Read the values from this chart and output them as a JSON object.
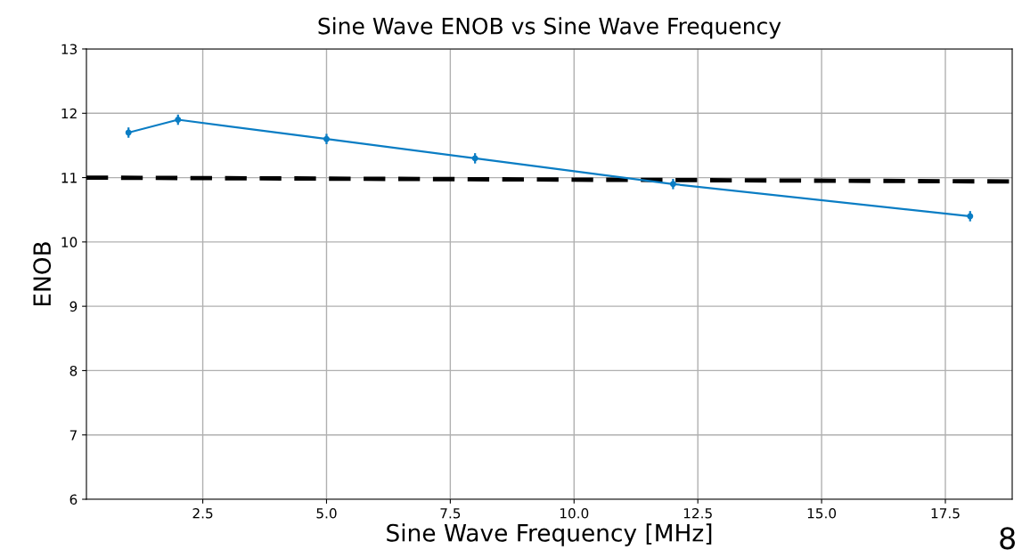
{
  "chart_data": {
    "type": "line",
    "title": "Sine Wave ENOB vs Sine Wave Frequency",
    "xlabel": "Sine Wave Frequency [MHz]",
    "ylabel": "ENOB",
    "x": [
      1,
      2,
      5,
      8,
      12,
      18
    ],
    "series": [
      {
        "color": "#0a7dc4",
        "values": [
          11.7,
          11.9,
          11.6,
          11.3,
          10.9,
          10.4
        ],
        "errors": [
          0.08,
          0.08,
          0.08,
          0.08,
          0.08,
          0.08
        ],
        "marker": "circle",
        "line_style": "solid"
      },
      {
        "color": "#000000",
        "x": [
          0.15,
          18.85
        ],
        "values": [
          11.0,
          10.94
        ],
        "marker": "none",
        "line_style": "dashed"
      }
    ],
    "xlim": [
      0.15,
      18.85
    ],
    "xticks": [
      {
        "value": 2.5,
        "label": "2.5"
      },
      {
        "value": 5,
        "label": "5.0"
      },
      {
        "value": 7.5,
        "label": "7.5"
      },
      {
        "value": 10,
        "label": "10.0"
      },
      {
        "value": 12.5,
        "label": "12.5"
      },
      {
        "value": 15,
        "label": "15.0"
      },
      {
        "value": 17.5,
        "label": "17.5"
      }
    ],
    "ylim": [
      6,
      13
    ],
    "yticks": [
      6,
      7,
      8,
      9,
      10,
      11,
      12,
      13
    ],
    "grid": true,
    "annotations": [
      "8"
    ]
  }
}
